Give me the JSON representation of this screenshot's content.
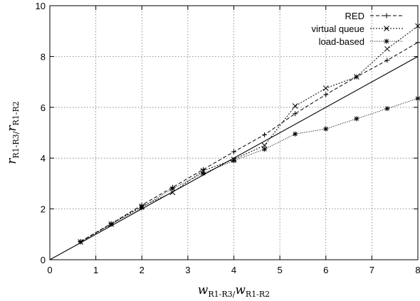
{
  "chart_data": {
    "type": "line",
    "grid": true,
    "legend_position": "top-right",
    "xlim": [
      0,
      8
    ],
    "ylim": [
      0,
      10
    ],
    "xticks": [
      "0",
      "1",
      "2",
      "3",
      "4",
      "5",
      "6",
      "7",
      "8"
    ],
    "yticks": [
      "0",
      "2",
      "4",
      "6",
      "8",
      "10"
    ],
    "xlabel": {
      "var": "w",
      "sub": "R1-R3/",
      "var2": "w",
      "sub2": "R1-R2"
    },
    "ylabel": {
      "var": "r",
      "sub": "R1-R3/",
      "var2": "r",
      "sub2": "R1-R2"
    },
    "reference_line": {
      "x": [
        0,
        8
      ],
      "y": [
        0,
        8
      ]
    },
    "series": [
      {
        "name": "RED",
        "marker": "plus",
        "dash": "dashed",
        "color": "#000000",
        "x": [
          0.667,
          1.333,
          2.0,
          2.667,
          3.333,
          4.0,
          4.667,
          5.333,
          6.0,
          6.667,
          7.333,
          8.0
        ],
        "y": [
          0.72,
          1.42,
          2.15,
          2.85,
          3.55,
          4.25,
          4.92,
          5.75,
          6.5,
          7.2,
          7.85,
          8.55
        ]
      },
      {
        "name": "virtual queue",
        "marker": "cross",
        "dash": "dotted",
        "color": "#000000",
        "x": [
          0.667,
          1.333,
          2.0,
          2.667,
          3.333,
          4.0,
          4.667,
          5.333,
          6.0,
          6.667,
          7.333,
          8.0
        ],
        "y": [
          0.7,
          1.4,
          2.1,
          2.65,
          3.5,
          3.95,
          4.5,
          6.05,
          6.75,
          7.2,
          8.3,
          9.2
        ]
      },
      {
        "name": "load-based",
        "marker": "star",
        "dash": "fine-dotted",
        "color": "#000000",
        "x": [
          0.667,
          1.333,
          2.0,
          2.667,
          3.333,
          4.0,
          4.667,
          5.333,
          6.0,
          6.667,
          7.333,
          8.0
        ],
        "y": [
          0.7,
          1.4,
          2.05,
          2.8,
          3.4,
          3.9,
          4.35,
          4.95,
          5.15,
          5.55,
          5.95,
          6.35
        ]
      }
    ]
  }
}
